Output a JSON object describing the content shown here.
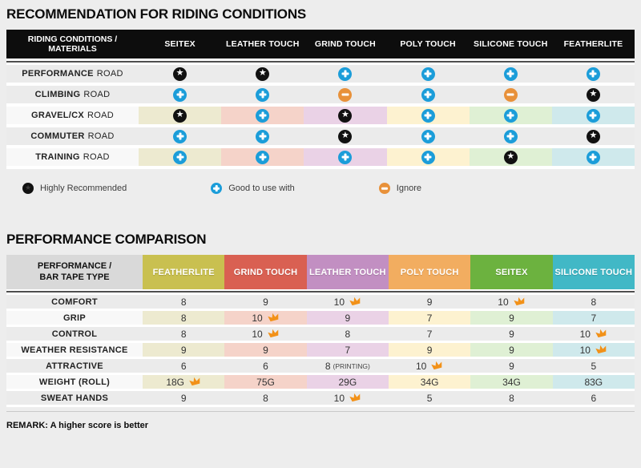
{
  "colors": {
    "page_bg": "#ededed",
    "header_black": "#0d0d0d",
    "divider_dark": "#4f4f4f",
    "row_gray": "#ebebeb",
    "row_label_light": "#f8f8f8",
    "tints": [
      "#edead0",
      "#f5d3c9",
      "#ead2e6",
      "#fdf2d0",
      "#dff0d4",
      "#cfe9ec"
    ],
    "icon_star_bg": "#111111",
    "icon_plus_bg": "#1b9dd9",
    "icon_minus_bg": "#e8913a",
    "crown": "#f29118"
  },
  "section1": {
    "title": "RECOMMENDATION FOR RIDING CONDITIONS",
    "table": {
      "corner_line1": "RIDING CONDITIONS /",
      "corner_line2": "MATERIALS",
      "columns": [
        "SEITEX",
        "LEATHER TOUCH",
        "GRIND TOUCH",
        "POLY TOUCH",
        "SILICONE TOUCH",
        "FEATHERLITE"
      ],
      "rows": [
        {
          "label_bold": "PERFORMANCE",
          "label_rest": "ROAD",
          "tinted": false,
          "cells": [
            "star",
            "star",
            "plus",
            "plus",
            "plus",
            "plus"
          ]
        },
        {
          "label_bold": "CLIMBING",
          "label_rest": "ROAD",
          "tinted": false,
          "cells": [
            "plus",
            "plus",
            "minus",
            "plus",
            "minus",
            "star"
          ]
        },
        {
          "label_bold": "GRAVEL/CX",
          "label_rest": "ROAD",
          "tinted": true,
          "cells": [
            "star",
            "plus",
            "star",
            "plus",
            "plus",
            "plus"
          ]
        },
        {
          "label_bold": "COMMUTER",
          "label_rest": "ROAD",
          "tinted": false,
          "cells": [
            "plus",
            "plus",
            "star",
            "plus",
            "plus",
            "star"
          ]
        },
        {
          "label_bold": "TRAINING",
          "label_rest": "ROAD",
          "tinted": true,
          "cells": [
            "plus",
            "plus",
            "plus",
            "plus",
            "star",
            "plus"
          ]
        }
      ]
    },
    "legend": [
      {
        "icon": "star",
        "label": "Highly Recommended"
      },
      {
        "icon": "plus",
        "label": "Good to use with"
      },
      {
        "icon": "minus",
        "label": "Ignore"
      }
    ]
  },
  "section2": {
    "title": "PERFORMANCE COMPARISON",
    "table": {
      "corner_line1": "PERFORMANCE /",
      "corner_line2": "BAR TAPE TYPE",
      "columns": [
        {
          "label": "FEATHERLITE",
          "color": "#c9c050"
        },
        {
          "label": "GRIND TOUCH",
          "color": "#d96052"
        },
        {
          "label": "LEATHER TOUCH",
          "color": "#c28fc2"
        },
        {
          "label": "POLY TOUCH",
          "color": "#f2ad60"
        },
        {
          "label": "SEITEX",
          "color": "#6cb23f"
        },
        {
          "label": "SILICONE TOUCH",
          "color": "#41b8c6"
        }
      ],
      "rows": [
        {
          "label": "COMFORT",
          "tinted": false,
          "cells": [
            {
              "v": "8"
            },
            {
              "v": "9"
            },
            {
              "v": "10",
              "crown": true
            },
            {
              "v": "9"
            },
            {
              "v": "10",
              "crown": true
            },
            {
              "v": "8"
            }
          ]
        },
        {
          "label": "GRIP",
          "tinted": true,
          "cells": [
            {
              "v": "8"
            },
            {
              "v": "10",
              "crown": true
            },
            {
              "v": "9"
            },
            {
              "v": "7"
            },
            {
              "v": "9"
            },
            {
              "v": "7"
            }
          ]
        },
        {
          "label": "CONTROL",
          "tinted": false,
          "cells": [
            {
              "v": "8"
            },
            {
              "v": "10",
              "crown": true
            },
            {
              "v": "8"
            },
            {
              "v": "7"
            },
            {
              "v": "9"
            },
            {
              "v": "10",
              "crown": true
            }
          ]
        },
        {
          "label": "WEATHER RESISTANCE",
          "tinted": true,
          "cells": [
            {
              "v": "9"
            },
            {
              "v": "9"
            },
            {
              "v": "7"
            },
            {
              "v": "9"
            },
            {
              "v": "9"
            },
            {
              "v": "10",
              "crown": true
            }
          ]
        },
        {
          "label": "ATTRACTIVE",
          "tinted": false,
          "cells": [
            {
              "v": "6"
            },
            {
              "v": "6"
            },
            {
              "v": "8",
              "note": "(PRINTING)"
            },
            {
              "v": "10",
              "crown": true
            },
            {
              "v": "9"
            },
            {
              "v": "5"
            }
          ]
        },
        {
          "label": "WEIGHT (ROLL)",
          "tinted": true,
          "cells": [
            {
              "v": "18G",
              "crown": true
            },
            {
              "v": "75G"
            },
            {
              "v": "29G"
            },
            {
              "v": "34G"
            },
            {
              "v": "34G"
            },
            {
              "v": "83G"
            }
          ]
        },
        {
          "label": "SWEAT HANDS",
          "tinted": false,
          "cells": [
            {
              "v": "9"
            },
            {
              "v": "8"
            },
            {
              "v": "10",
              "crown": true
            },
            {
              "v": "5"
            },
            {
              "v": "8"
            },
            {
              "v": "6"
            }
          ]
        }
      ]
    },
    "remark": "REMARK: A higher score is better"
  }
}
